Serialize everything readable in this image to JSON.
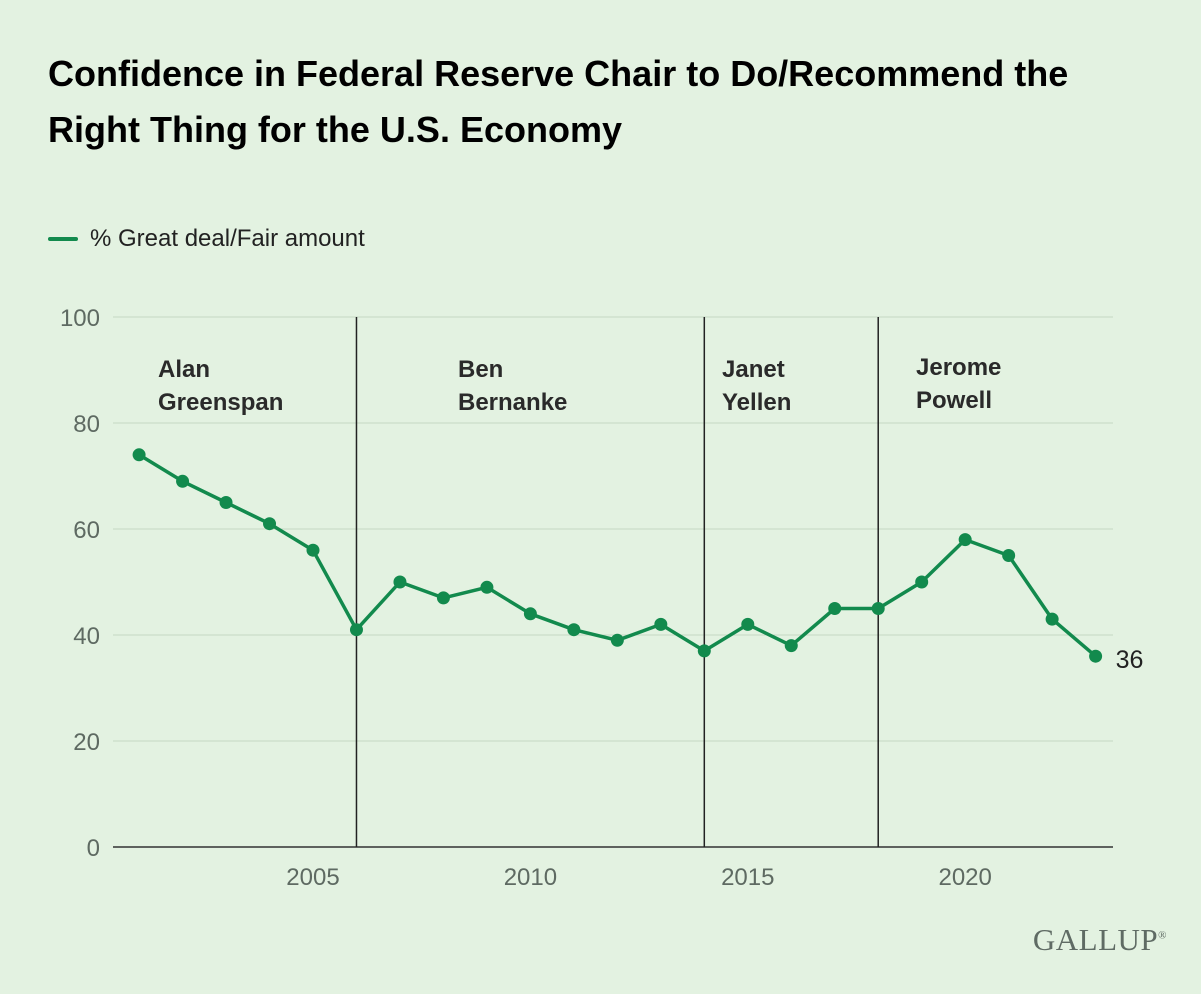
{
  "chart_data": {
    "type": "line",
    "title": "Confidence in Federal Reserve Chair to Do/Recommend the Right Thing for the U.S. Economy",
    "legend": {
      "label": "% Great deal/Fair amount",
      "position": "top-left"
    },
    "x": [
      2001,
      2002,
      2003,
      2004,
      2005,
      2006,
      2007,
      2008,
      2009,
      2010,
      2011,
      2012,
      2013,
      2014,
      2015,
      2016,
      2017,
      2018,
      2019,
      2020,
      2021,
      2022,
      2023
    ],
    "series": [
      {
        "name": "% Great deal/Fair amount",
        "values": [
          74,
          69,
          65,
          61,
          56,
          41,
          50,
          47,
          49,
          44,
          41,
          39,
          42,
          37,
          42,
          38,
          45,
          45,
          50,
          58,
          55,
          43,
          36
        ]
      }
    ],
    "xticks": [
      "2005",
      "2010",
      "2015",
      "2020"
    ],
    "xtick_values": [
      2005,
      2010,
      2015,
      2020
    ],
    "yticks": [
      "0",
      "20",
      "40",
      "60",
      "80",
      "100"
    ],
    "ylim": [
      0,
      100
    ],
    "grid": "horizontal",
    "end_label": "36",
    "eras": [
      {
        "label_lines": [
          "Alan",
          "Greenspan"
        ]
      },
      {
        "label_lines": [
          "Ben",
          "Bernanke"
        ],
        "start": 2006
      },
      {
        "label_lines": [
          "Janet",
          "Yellen"
        ],
        "start": 2014
      },
      {
        "label_lines": [
          "Jerome",
          "Powell"
        ],
        "start": 2018
      }
    ],
    "line_color": "#128a4d"
  },
  "branding": {
    "logo_text": "GALLUP",
    "logo_mark": "®"
  }
}
